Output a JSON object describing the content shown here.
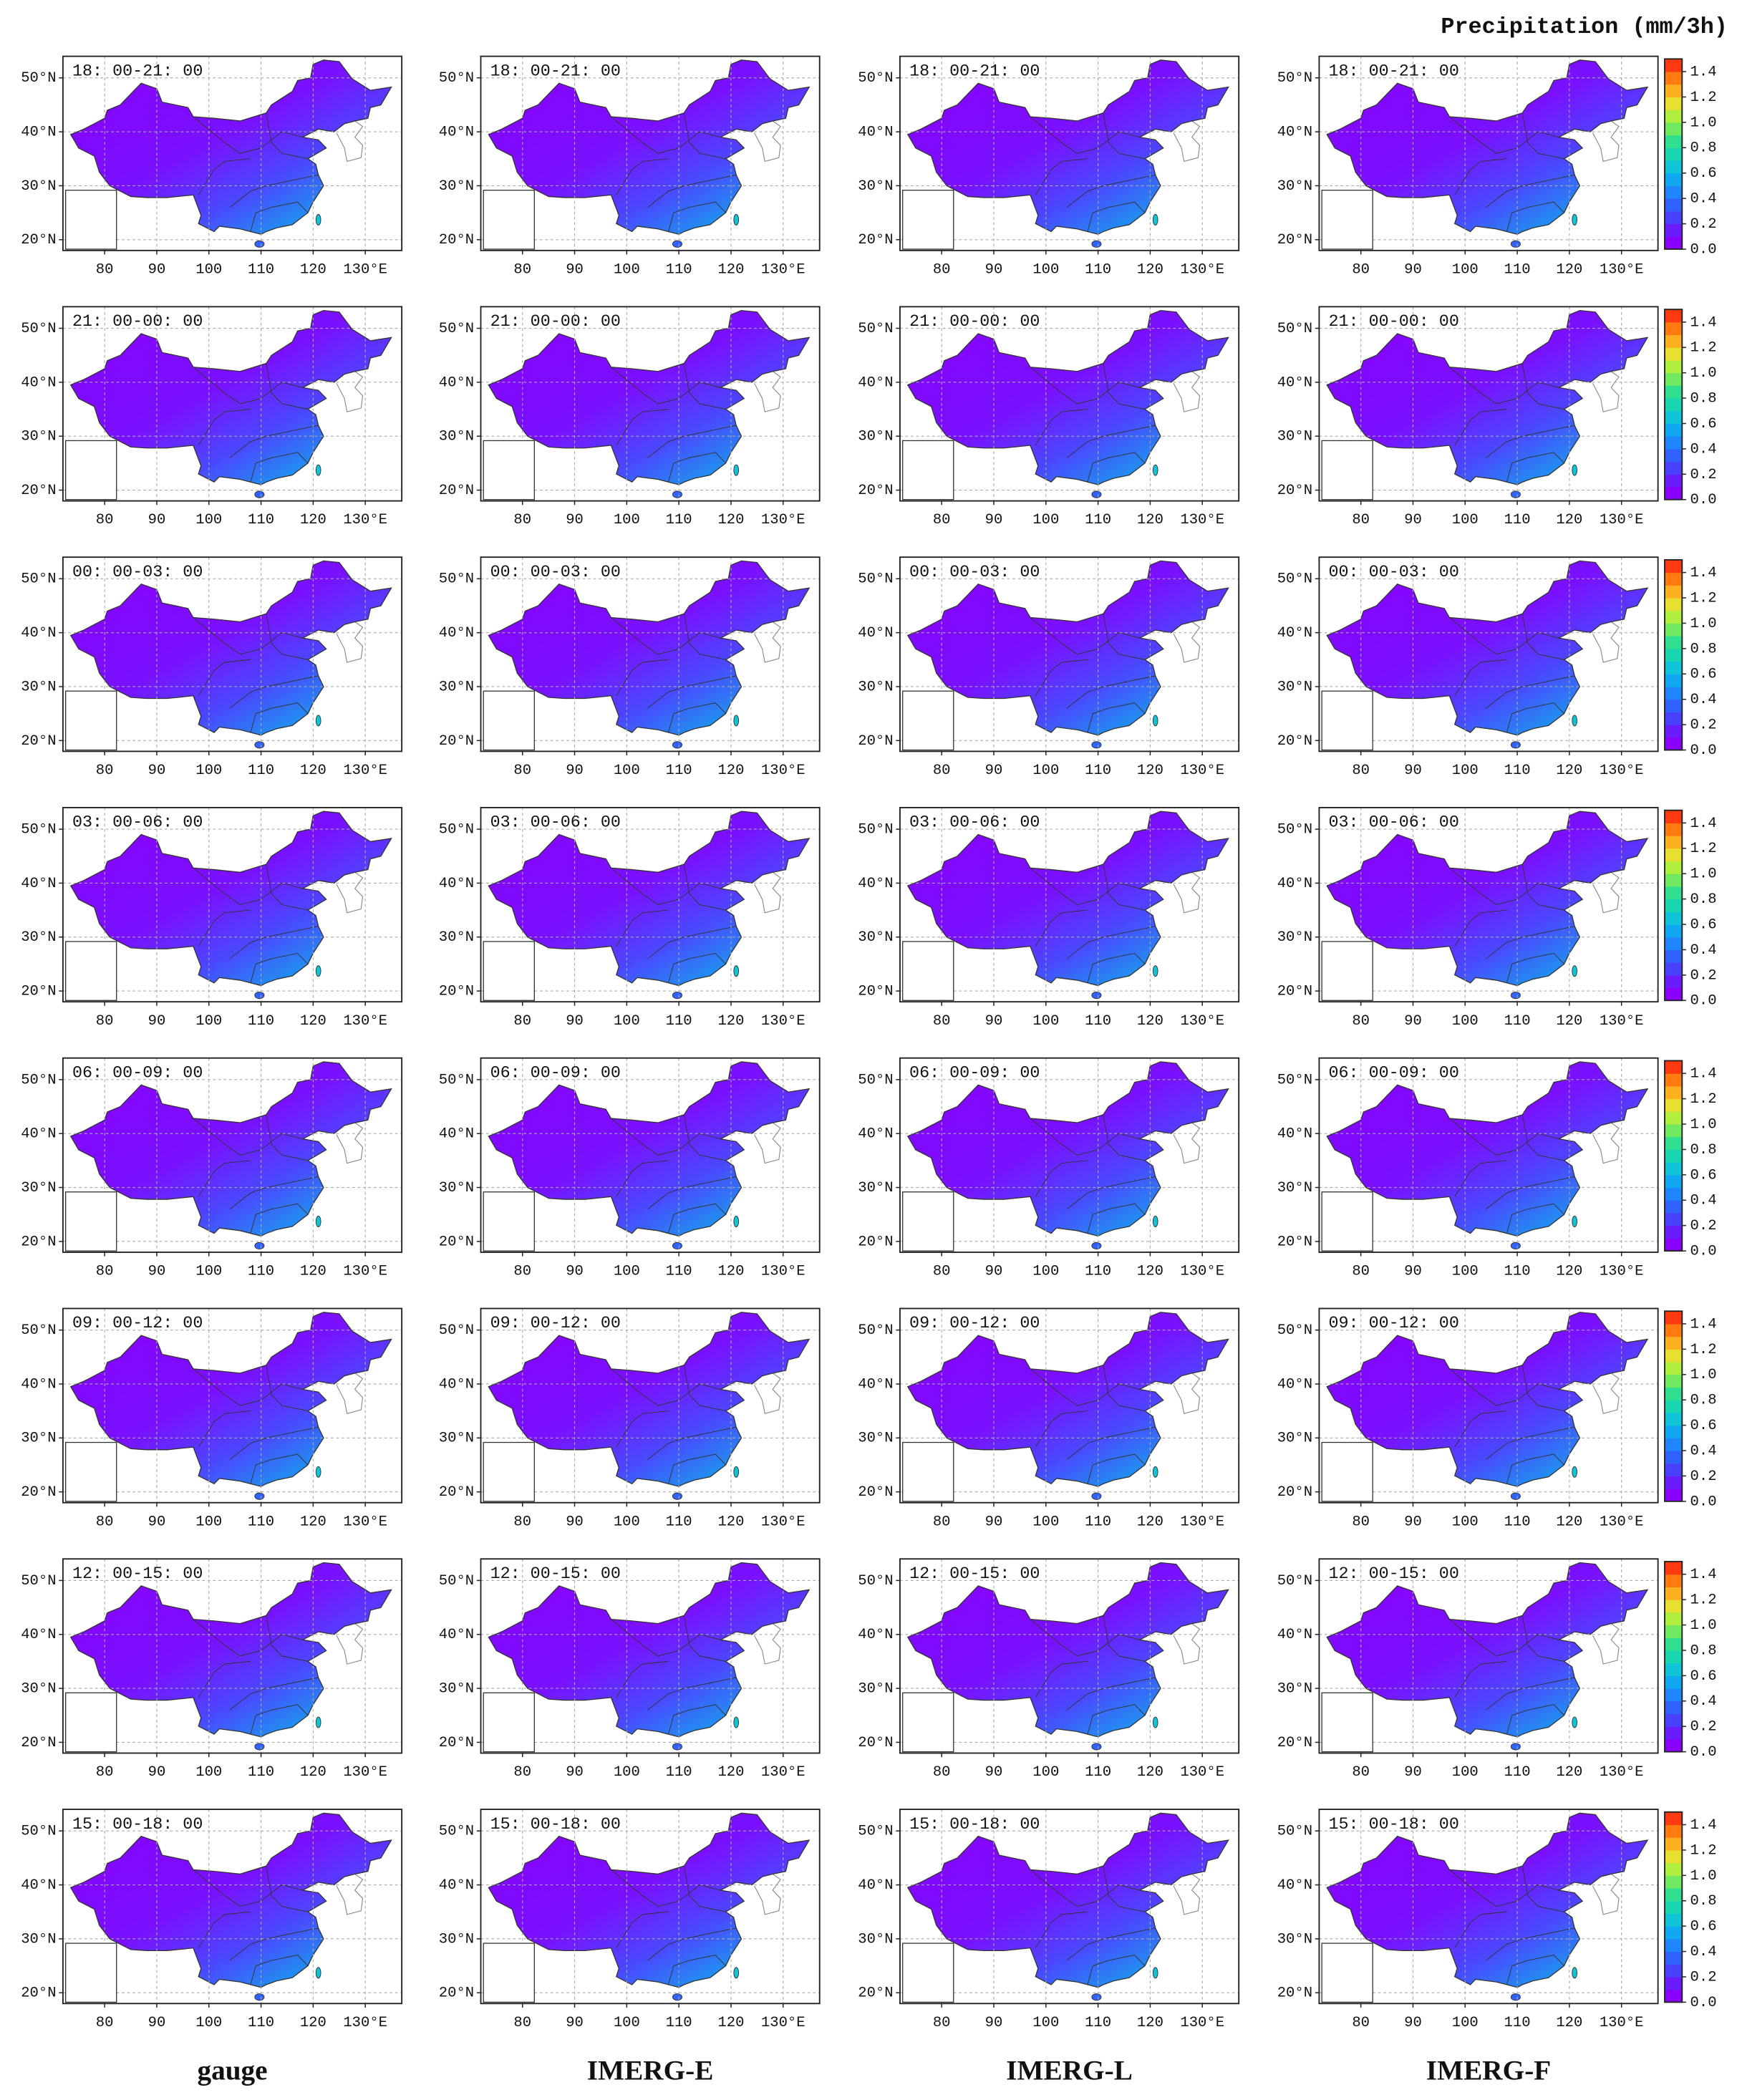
{
  "title": "Precipitation (mm/3h)",
  "columns": [
    "gauge",
    "IMERG-E",
    "IMERG-L",
    "IMERG-F"
  ],
  "rows": [
    "18: 00-21: 00",
    "21: 00-00: 00",
    "00: 00-03: 00",
    "03: 00-06: 00",
    "06: 00-09: 00",
    "09: 00-12: 00",
    "12: 00-15: 00",
    "15: 00-18: 00"
  ],
  "map": {
    "xlim": [
      72,
      137
    ],
    "ylim": [
      18,
      54
    ],
    "xticks": [
      80,
      90,
      100,
      110,
      120,
      {
        "value": 130,
        "label": "130°E"
      }
    ],
    "yticks": [
      {
        "value": 20,
        "label": "20°N"
      },
      {
        "value": 30,
        "label": "30°N"
      },
      {
        "value": 40,
        "label": "40°N"
      },
      {
        "value": 50,
        "label": "50°N"
      }
    ],
    "grid": true
  },
  "colorbar": {
    "lim": [
      0,
      1.5
    ],
    "ticks": [
      {
        "value": 0,
        "label": "0.0"
      },
      {
        "value": 0.2,
        "label": "0.2"
      },
      {
        "value": 0.4,
        "label": "0.4"
      },
      {
        "value": 0.6,
        "label": "0.6"
      },
      {
        "value": 0.8,
        "label": "0.8"
      },
      {
        "value": 1.0,
        "label": "1.0"
      },
      {
        "value": 1.2,
        "label": "1.2"
      },
      {
        "value": 1.4,
        "label": "1.4"
      }
    ],
    "colors": [
      "#8a00ff",
      "#6a1bff",
      "#4a40ff",
      "#2f62ff",
      "#1f86ff",
      "#10a8f0",
      "#10c4d8",
      "#1ad6b0",
      "#30e090",
      "#70e860",
      "#b0ee40",
      "#e8e030",
      "#ffb020",
      "#ff7a10",
      "#ff3a10"
    ]
  }
}
